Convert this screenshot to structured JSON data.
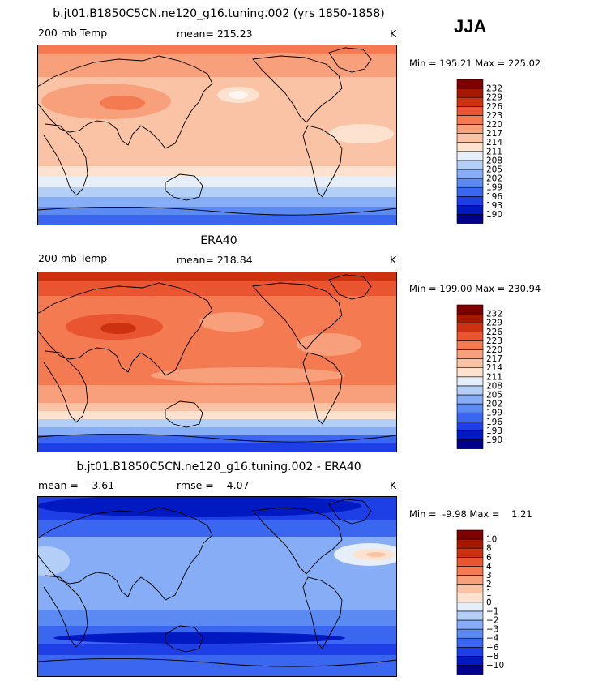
{
  "season": "JJA",
  "chart_data": [
    {
      "type": "heatmap",
      "title": "b.jt01.B1850C5CN.ne120_g16.tuning.002 (yrs 1850-1858)",
      "left_label": "200 mb Temp",
      "center_label": "mean= 215.23",
      "units": "K",
      "minmax": "Min = 195.21 Max = 225.02",
      "colorbar": {
        "levels": [
          190,
          193,
          196,
          199,
          202,
          205,
          208,
          211,
          214,
          217,
          220,
          223,
          226,
          229,
          232
        ],
        "level_labels": [
          "190",
          "193",
          "196",
          "199",
          "202",
          "205",
          "208",
          "211",
          "214",
          "217",
          "220",
          "223",
          "226",
          "229",
          "232"
        ],
        "colors": [
          "#00008a",
          "#0019c0",
          "#1f3fe6",
          "#3a66f0",
          "#5a8af2",
          "#86adf5",
          "#b4cff7",
          "#e6eef9",
          "#fde2cf",
          "#fbc3a5",
          "#f8a07b",
          "#f47a52",
          "#e85530",
          "#cc3210",
          "#a51800",
          "#7e0000"
        ]
      }
    },
    {
      "type": "heatmap",
      "title": "ERA40",
      "left_label": "200 mb Temp",
      "center_label": "mean= 218.84",
      "units": "K",
      "minmax": "Min = 199.00 Max = 230.94",
      "colorbar": {
        "levels": [
          190,
          193,
          196,
          199,
          202,
          205,
          208,
          211,
          214,
          217,
          220,
          223,
          226,
          229,
          232
        ],
        "level_labels": [
          "190",
          "193",
          "196",
          "199",
          "202",
          "205",
          "208",
          "211",
          "214",
          "217",
          "220",
          "223",
          "226",
          "229",
          "232"
        ],
        "colors": [
          "#00008a",
          "#0019c0",
          "#1f3fe6",
          "#3a66f0",
          "#5a8af2",
          "#86adf5",
          "#b4cff7",
          "#e6eef9",
          "#fde2cf",
          "#fbc3a5",
          "#f8a07b",
          "#f47a52",
          "#e85530",
          "#cc3210",
          "#a51800",
          "#7e0000"
        ]
      }
    },
    {
      "type": "heatmap",
      "title": "b.jt01.B1850C5CN.ne120_g16.tuning.002 - ERA40",
      "left_label": "mean =   -3.61",
      "center_label": "rmse =    4.07",
      "units": "K",
      "minmax": "Min =  -9.98 Max =    1.21",
      "colorbar": {
        "levels": [
          -10,
          -8,
          -6,
          -4,
          -3,
          -2,
          -1,
          0,
          1,
          2,
          3,
          4,
          6,
          8,
          10
        ],
        "level_labels": [
          "−10",
          "−8",
          "−6",
          "−4",
          "−3",
          "−2",
          "−1",
          "0",
          "1",
          "2",
          "3",
          "4",
          "6",
          "8",
          "10"
        ],
        "colors": [
          "#00008a",
          "#0019c0",
          "#1f3fe6",
          "#3a66f0",
          "#5a8af2",
          "#86adf5",
          "#b4cff7",
          "#e6eef9",
          "#fde2cf",
          "#fbc3a5",
          "#f8a07b",
          "#f47a52",
          "#e85530",
          "#cc3210",
          "#a51800",
          "#7e0000"
        ]
      }
    }
  ]
}
